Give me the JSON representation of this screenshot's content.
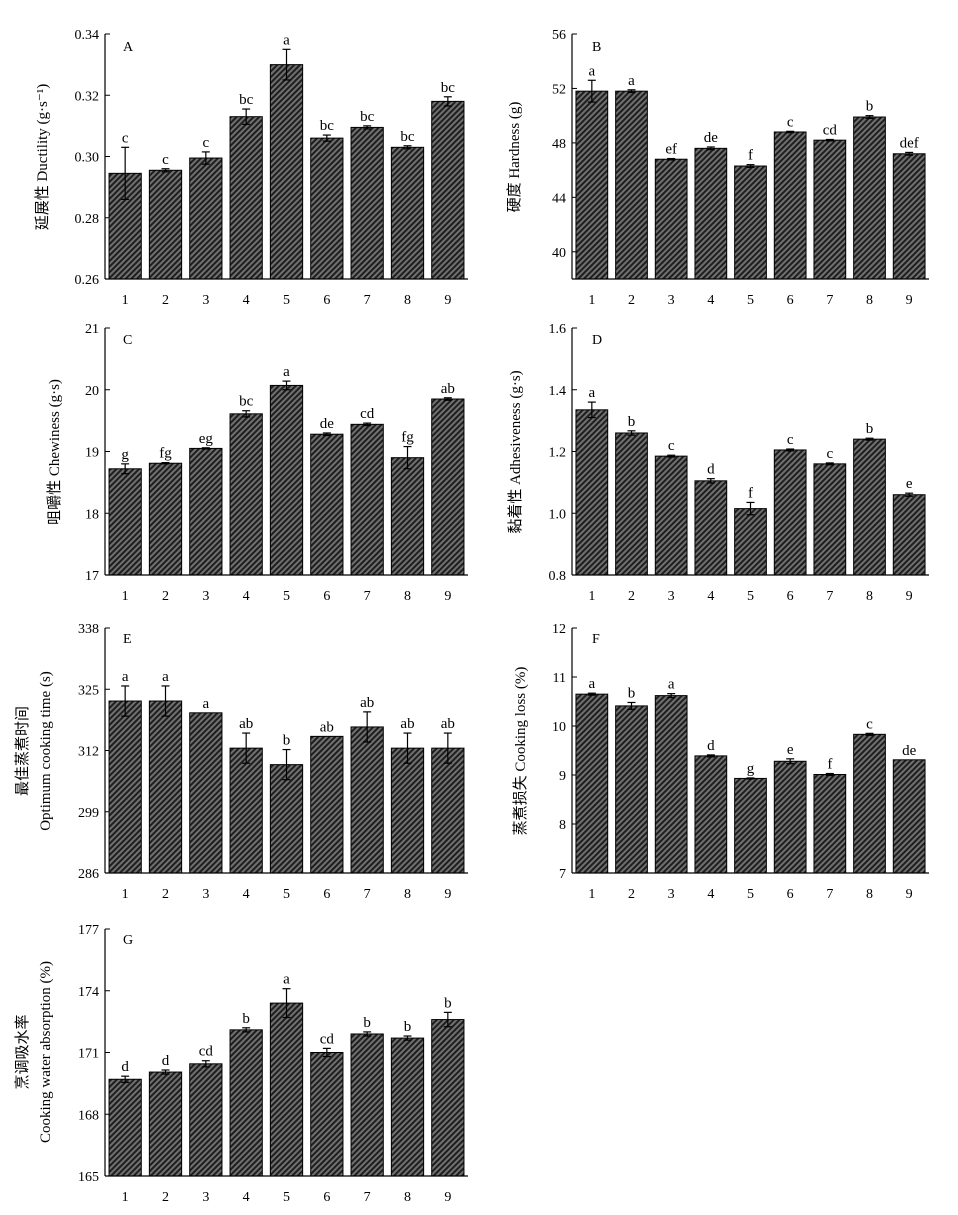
{
  "colors": {
    "bar_fill": "#707070",
    "hatch_line": "#1e1e1e",
    "axis": "#000000",
    "background": "#ffffff"
  },
  "chart_data": [
    {
      "id": "A",
      "type": "bar",
      "panel_letter": "A",
      "ylabel": "延展性 Ductility (g·s⁻¹)",
      "categories": [
        "1",
        "2",
        "3",
        "4",
        "5",
        "6",
        "7",
        "8",
        "9"
      ],
      "ylim": [
        0.26,
        0.34
      ],
      "yticks": [
        "0.26",
        "0.28",
        "0.30",
        "0.32",
        "0.34"
      ],
      "values": [
        0.2945,
        0.2955,
        0.2995,
        0.313,
        0.33,
        0.306,
        0.3095,
        0.303,
        0.318
      ],
      "errors": [
        0.0085,
        0.0005,
        0.002,
        0.0025,
        0.005,
        0.001,
        0.0005,
        0.0005,
        0.0015
      ],
      "labels": [
        "c",
        "c",
        "c",
        "bc",
        "a",
        "bc",
        "bc",
        "bc",
        "bc"
      ]
    },
    {
      "id": "B",
      "type": "bar",
      "panel_letter": "B",
      "ylabel": "硬度 Hardness (g)",
      "categories": [
        "1",
        "2",
        "3",
        "4",
        "5",
        "6",
        "7",
        "8",
        "9"
      ],
      "ylim": [
        38,
        56
      ],
      "yticks": [
        "40",
        "44",
        "48",
        "52",
        "56"
      ],
      "values": [
        51.8,
        51.8,
        46.8,
        47.6,
        46.3,
        48.8,
        48.2,
        49.9,
        47.2
      ],
      "errors": [
        0.8,
        0.1,
        0.05,
        0.1,
        0.1,
        0.05,
        0.05,
        0.1,
        0.1
      ],
      "labels": [
        "a",
        "a",
        "ef",
        "de",
        "f",
        "c",
        "cd",
        "b",
        "def"
      ]
    },
    {
      "id": "C",
      "type": "bar",
      "panel_letter": "C",
      "ylabel": "咀嚼性 Chewiness (g·s)",
      "categories": [
        "1",
        "2",
        "3",
        "4",
        "5",
        "6",
        "7",
        "8",
        "9"
      ],
      "ylim": [
        17,
        21
      ],
      "yticks": [
        "17",
        "18",
        "19",
        "20",
        "21"
      ],
      "values": [
        18.72,
        18.81,
        19.05,
        19.61,
        20.07,
        19.28,
        19.44,
        18.9,
        19.85
      ],
      "errors": [
        0.08,
        0.01,
        0.01,
        0.05,
        0.07,
        0.02,
        0.02,
        0.18,
        0.02
      ],
      "labels": [
        "g",
        "fg",
        "eg",
        "bc",
        "a",
        "de",
        "cd",
        "fg",
        "ab"
      ]
    },
    {
      "id": "D",
      "type": "bar",
      "panel_letter": "D",
      "ylabel": "黏着性 Adhesiveness (g·s)",
      "categories": [
        "1",
        "2",
        "3",
        "4",
        "5",
        "6",
        "7",
        "8",
        "9"
      ],
      "ylim": [
        0.8,
        1.6
      ],
      "yticks": [
        "0.8",
        "1.0",
        "1.2",
        "1.4",
        "1.6"
      ],
      "values": [
        1.335,
        1.26,
        1.185,
        1.105,
        1.015,
        1.205,
        1.16,
        1.24,
        1.06
      ],
      "errors": [
        0.025,
        0.007,
        0.003,
        0.007,
        0.02,
        0.003,
        0.003,
        0.003,
        0.005
      ],
      "labels": [
        "a",
        "b",
        "c",
        "d",
        "f",
        "c",
        "c",
        "b",
        "e"
      ]
    },
    {
      "id": "E",
      "type": "bar",
      "panel_letter": "E",
      "ylabel": "最佳蒸煮时间",
      "ylabel2": "Optimum cooking time (s)",
      "categories": [
        "1",
        "2",
        "3",
        "4",
        "5",
        "6",
        "7",
        "8",
        "9"
      ],
      "ylim": [
        286,
        338
      ],
      "yticks": [
        "286",
        "299",
        "312",
        "325",
        "338"
      ],
      "values": [
        322.5,
        322.5,
        320.0,
        312.5,
        309.0,
        315.0,
        317.0,
        312.5,
        312.5
      ],
      "errors": [
        3.2,
        3.2,
        0.0,
        3.2,
        3.2,
        0.0,
        3.2,
        3.2,
        3.2
      ],
      "labels": [
        "a",
        "a",
        "a",
        "ab",
        "b",
        "ab",
        "ab",
        "ab",
        "ab"
      ]
    },
    {
      "id": "F",
      "type": "bar",
      "panel_letter": "F",
      "ylabel": "蒸煮损失 Cooking loss (%)",
      "categories": [
        "1",
        "2",
        "3",
        "4",
        "5",
        "6",
        "7",
        "8",
        "9"
      ],
      "ylim": [
        7,
        12
      ],
      "yticks": [
        "7",
        "8",
        "9",
        "10",
        "11",
        "12"
      ],
      "values": [
        10.65,
        10.41,
        10.62,
        9.39,
        8.93,
        9.28,
        9.01,
        9.83,
        9.31
      ],
      "errors": [
        0.02,
        0.07,
        0.04,
        0.02,
        0.01,
        0.05,
        0.02,
        0.02,
        0.0
      ],
      "labels": [
        "a",
        "b",
        "a",
        "d",
        "g",
        "e",
        "f",
        "c",
        "de"
      ]
    },
    {
      "id": "G",
      "type": "bar",
      "panel_letter": "G",
      "ylabel": "烹调吸水率",
      "ylabel2": "Cooking water absorption (%)",
      "categories": [
        "1",
        "2",
        "3",
        "4",
        "5",
        "6",
        "7",
        "8",
        "9"
      ],
      "ylim": [
        165,
        177
      ],
      "yticks": [
        "165",
        "168",
        "171",
        "174",
        "177"
      ],
      "values": [
        169.7,
        170.05,
        170.45,
        172.1,
        173.4,
        171.0,
        171.9,
        171.7,
        172.6
      ],
      "errors": [
        0.15,
        0.1,
        0.15,
        0.1,
        0.7,
        0.2,
        0.1,
        0.1,
        0.35
      ],
      "labels": [
        "d",
        "d",
        "cd",
        "b",
        "a",
        "cd",
        "b",
        "b",
        "b"
      ]
    }
  ]
}
